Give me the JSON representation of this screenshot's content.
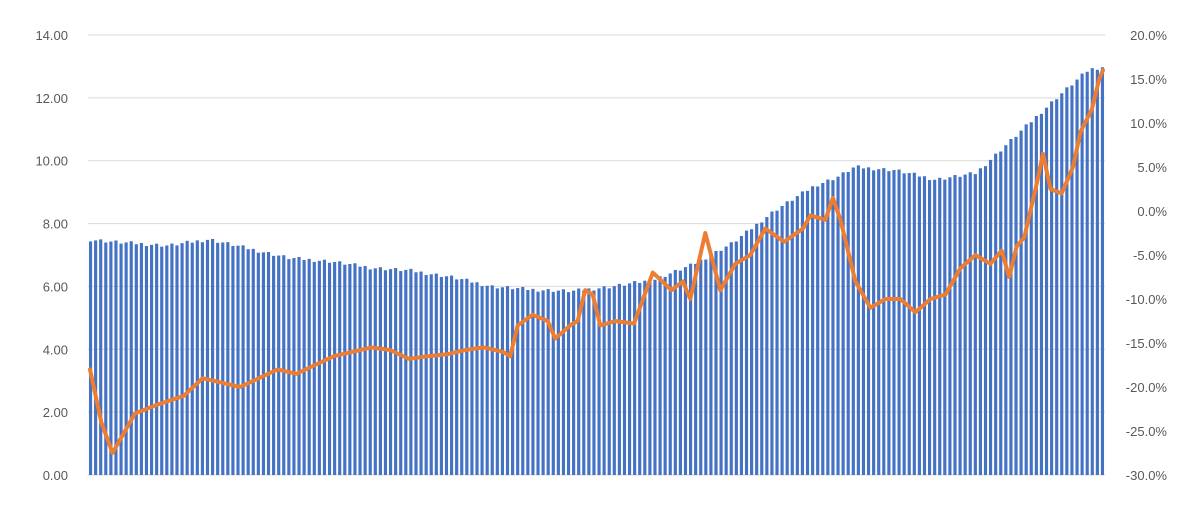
{
  "chart_data": {
    "type": "bar+line",
    "title": "",
    "xlabel": "",
    "ylabel": "",
    "y_left": {
      "range": [
        0,
        14
      ],
      "ticks": [
        "0.00",
        "2.00",
        "4.00",
        "6.00",
        "8.00",
        "10.00",
        "12.00",
        "14.00"
      ]
    },
    "y_right": {
      "range": [
        -30,
        20
      ],
      "ticks": [
        "-30.0%",
        "-25.0%",
        "-20.0%",
        "-15.0%",
        "-10.0%",
        "-5.0%",
        "0.0%",
        "5.0%",
        "10.0%",
        "15.0%",
        "20.0%"
      ]
    },
    "grid": true,
    "legend": "none",
    "bar_count": 200,
    "colors": {
      "bars": "#4472c4",
      "line": "#ed7d31",
      "grid": "#d9d9d9",
      "text": "#595959"
    },
    "bar_series": {
      "axis": "left",
      "points": [
        [
          0,
          7.5
        ],
        [
          8,
          7.4
        ],
        [
          20,
          7.3
        ],
        [
          30,
          7.5
        ],
        [
          40,
          7.2
        ],
        [
          50,
          6.9
        ],
        [
          60,
          6.8
        ],
        [
          70,
          6.6
        ],
        [
          80,
          6.5
        ],
        [
          90,
          6.3
        ],
        [
          100,
          6.0
        ],
        [
          110,
          5.9
        ],
        [
          120,
          5.85
        ],
        [
          130,
          6.0
        ],
        [
          140,
          6.2
        ],
        [
          150,
          6.7
        ],
        [
          160,
          7.4
        ],
        [
          170,
          8.4
        ],
        [
          180,
          9.2
        ],
        [
          186,
          9.5
        ],
        [
          190,
          9.8
        ],
        [
          200,
          9.7
        ],
        [
          210,
          9.4
        ],
        [
          220,
          9.6
        ],
        [
          230,
          10.8
        ],
        [
          240,
          12.0
        ],
        [
          248,
          12.9
        ],
        [
          252,
          13.0
        ]
      ]
    },
    "line_series": {
      "axis": "right",
      "points": [
        [
          0,
          -18.0
        ],
        [
          3,
          -24.0
        ],
        [
          6,
          -27.5
        ],
        [
          12,
          -23.0
        ],
        [
          18,
          -22.0
        ],
        [
          25,
          -21.0
        ],
        [
          30,
          -19.0
        ],
        [
          35,
          -19.5
        ],
        [
          40,
          -20.0
        ],
        [
          45,
          -19.0
        ],
        [
          50,
          -18.0
        ],
        [
          55,
          -18.5
        ],
        [
          60,
          -17.5
        ],
        [
          65,
          -16.5
        ],
        [
          70,
          -16.0
        ],
        [
          75,
          -15.5
        ],
        [
          80,
          -15.8
        ],
        [
          85,
          -16.8
        ],
        [
          90,
          -16.5
        ],
        [
          95,
          -16.3
        ],
        [
          100,
          -15.8
        ],
        [
          105,
          -15.5
        ],
        [
          110,
          -16.0
        ],
        [
          112,
          -16.5
        ],
        [
          114,
          -13.0
        ],
        [
          118,
          -11.8
        ],
        [
          122,
          -12.5
        ],
        [
          124,
          -14.5
        ],
        [
          128,
          -13.0
        ],
        [
          130,
          -12.5
        ],
        [
          132,
          -9.0
        ],
        [
          134,
          -9.5
        ],
        [
          136,
          -13.0
        ],
        [
          140,
          -12.5
        ],
        [
          145,
          -12.8
        ],
        [
          150,
          -7.0
        ],
        [
          155,
          -9.0
        ],
        [
          158,
          -8.0
        ],
        [
          160,
          -10.0
        ],
        [
          164,
          -2.5
        ],
        [
          168,
          -9.0
        ],
        [
          172,
          -6.0
        ],
        [
          176,
          -5.0
        ],
        [
          180,
          -2.0
        ],
        [
          185,
          -3.5
        ],
        [
          190,
          -2.0
        ],
        [
          192,
          -0.5
        ],
        [
          196,
          -1.0
        ],
        [
          198,
          1.5
        ],
        [
          200,
          -1.0
        ],
        [
          204,
          -8.0
        ],
        [
          208,
          -11.0
        ],
        [
          212,
          -10.0
        ],
        [
          216,
          -10.0
        ],
        [
          220,
          -11.5
        ],
        [
          224,
          -10.0
        ],
        [
          228,
          -9.5
        ],
        [
          232,
          -6.5
        ],
        [
          236,
          -5.0
        ],
        [
          240,
          -6.0
        ],
        [
          243,
          -4.5
        ],
        [
          245,
          -7.5
        ],
        [
          247,
          -4.0
        ],
        [
          249,
          -3.0
        ],
        [
          252,
          2.5
        ],
        [
          254,
          6.5
        ],
        [
          256,
          2.5
        ],
        [
          259,
          2.0
        ],
        [
          262,
          5.0
        ],
        [
          264,
          9.0
        ],
        [
          267,
          11.5
        ],
        [
          269,
          15.0
        ],
        [
          270,
          16.0
        ]
      ]
    }
  }
}
